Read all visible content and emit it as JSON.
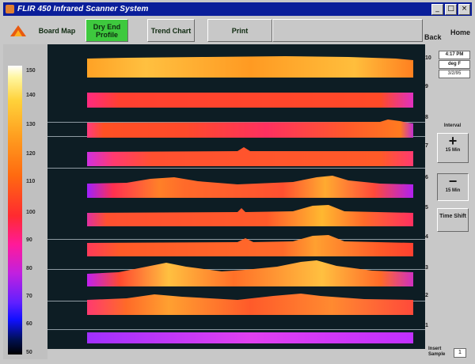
{
  "window": {
    "title": "FLIR 450 Infrared Scanner System",
    "btn_min": "_",
    "btn_max": "□",
    "btn_close": "×"
  },
  "toolbar": {
    "board_map": "Board Map",
    "dry_end_profile": "Dry End Profile",
    "trend_chart": "Trend Chart",
    "print": "Print",
    "back_label": "Back",
    "home_label": "Home"
  },
  "legend": {
    "labels": [
      "150",
      "140",
      "130",
      "120",
      "110",
      "100",
      "90",
      "80",
      "70",
      "60",
      "50"
    ]
  },
  "rows": {
    "labels": [
      "10",
      "9",
      "8",
      "7",
      "6",
      "5",
      "4",
      "3",
      "2",
      "1"
    ]
  },
  "right_panel": {
    "time": "4:17 PM",
    "unit": "deg F",
    "date": "3/2/95",
    "interval_label": "Interval",
    "plus_symbol": "+",
    "plus_caption": "15 Min",
    "minus_symbol": "−",
    "minus_caption": "15 Min",
    "time_shift": "Time Shift"
  },
  "bottom": {
    "insert_sample_label": "Insert Sample",
    "insert_sample_value": "1"
  },
  "colors": {
    "title_bar": "#0a1e9a",
    "active_button": "#3ec93e",
    "chart_background": "#0d1d24"
  }
}
